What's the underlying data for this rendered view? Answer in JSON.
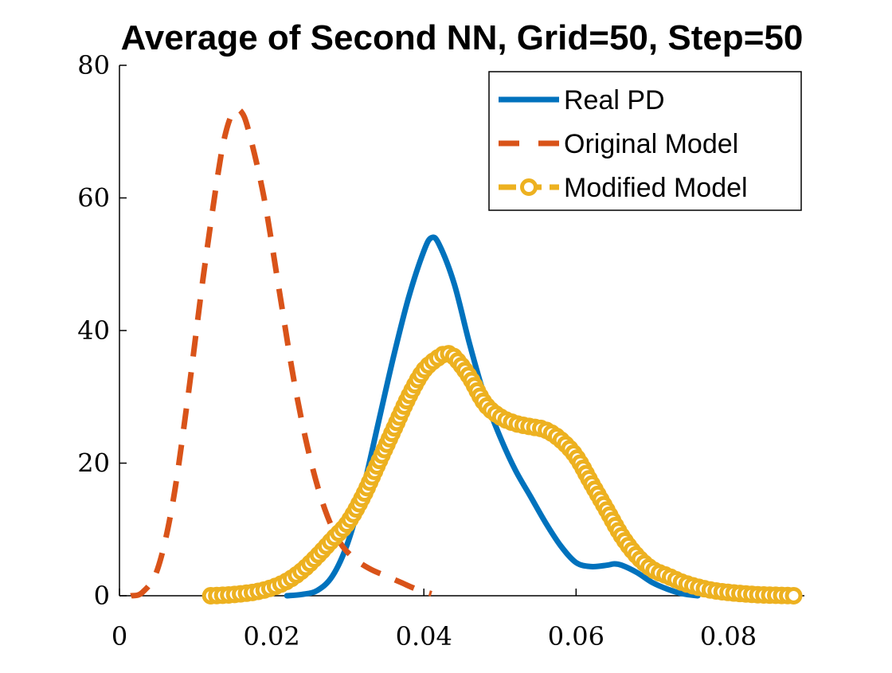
{
  "chart_data": {
    "type": "line",
    "title": "Average of Second NN, Grid=50, Step=50",
    "xlabel": "",
    "ylabel": "",
    "xlim": [
      0,
      0.09
    ],
    "ylim": [
      0,
      80
    ],
    "x_ticks": [
      "0",
      "0.02",
      "0.04",
      "0.06",
      "0.08"
    ],
    "y_ticks": [
      "0",
      "20",
      "40",
      "60",
      "80"
    ],
    "grid": false,
    "legend_position": "top-right",
    "series": [
      {
        "name": "Real PD",
        "style": "solid",
        "color": "#0072BD",
        "points": [
          [
            0.022,
            0
          ],
          [
            0.024,
            0.2
          ],
          [
            0.026,
            0.8
          ],
          [
            0.028,
            3
          ],
          [
            0.03,
            8
          ],
          [
            0.032,
            16
          ],
          [
            0.034,
            26
          ],
          [
            0.036,
            36
          ],
          [
            0.038,
            45
          ],
          [
            0.04,
            52
          ],
          [
            0.041,
            54
          ],
          [
            0.042,
            53
          ],
          [
            0.044,
            47
          ],
          [
            0.046,
            38
          ],
          [
            0.048,
            30
          ],
          [
            0.05,
            24
          ],
          [
            0.052,
            19
          ],
          [
            0.054,
            15
          ],
          [
            0.056,
            11
          ],
          [
            0.058,
            7.5
          ],
          [
            0.06,
            5
          ],
          [
            0.062,
            4.4
          ],
          [
            0.064,
            4.6
          ],
          [
            0.065,
            4.8
          ],
          [
            0.066,
            4.6
          ],
          [
            0.068,
            3.5
          ],
          [
            0.07,
            2
          ],
          [
            0.072,
            1
          ],
          [
            0.074,
            0.3
          ],
          [
            0.076,
            0
          ]
        ]
      },
      {
        "name": "Original Model",
        "style": "dashed",
        "color": "#D95319",
        "points": [
          [
            0.0015,
            0
          ],
          [
            0.003,
            0.5
          ],
          [
            0.005,
            4
          ],
          [
            0.007,
            14
          ],
          [
            0.009,
            30
          ],
          [
            0.011,
            48
          ],
          [
            0.013,
            64
          ],
          [
            0.014,
            70
          ],
          [
            0.015,
            73
          ],
          [
            0.016,
            73
          ],
          [
            0.017,
            70
          ],
          [
            0.019,
            60
          ],
          [
            0.021,
            46
          ],
          [
            0.023,
            32
          ],
          [
            0.025,
            21
          ],
          [
            0.027,
            13
          ],
          [
            0.029,
            8
          ],
          [
            0.031,
            5.5
          ],
          [
            0.033,
            4
          ],
          [
            0.035,
            3
          ],
          [
            0.037,
            2
          ],
          [
            0.039,
            1
          ],
          [
            0.041,
            0.3
          ]
        ]
      },
      {
        "name": "Modified Model",
        "style": "dash-circle",
        "color": "#EDB120",
        "points": [
          [
            0.012,
            0
          ],
          [
            0.014,
            0.1
          ],
          [
            0.016,
            0.3
          ],
          [
            0.018,
            0.6
          ],
          [
            0.02,
            1.2
          ],
          [
            0.022,
            2.2
          ],
          [
            0.024,
            3.8
          ],
          [
            0.026,
            6
          ],
          [
            0.028,
            8.5
          ],
          [
            0.03,
            11
          ],
          [
            0.032,
            15
          ],
          [
            0.034,
            20
          ],
          [
            0.036,
            25
          ],
          [
            0.038,
            30
          ],
          [
            0.04,
            34
          ],
          [
            0.042,
            36
          ],
          [
            0.043,
            36.5
          ],
          [
            0.044,
            36
          ],
          [
            0.046,
            33
          ],
          [
            0.048,
            29
          ],
          [
            0.05,
            27
          ],
          [
            0.052,
            26
          ],
          [
            0.054,
            25.5
          ],
          [
            0.056,
            25
          ],
          [
            0.058,
            23.5
          ],
          [
            0.06,
            21
          ],
          [
            0.062,
            17
          ],
          [
            0.064,
            13
          ],
          [
            0.066,
            9
          ],
          [
            0.068,
            6
          ],
          [
            0.07,
            4
          ],
          [
            0.072,
            3
          ],
          [
            0.074,
            2
          ],
          [
            0.076,
            1.3
          ],
          [
            0.078,
            0.8
          ],
          [
            0.08,
            0.5
          ],
          [
            0.082,
            0.3
          ],
          [
            0.084,
            0.15
          ],
          [
            0.086,
            0.08
          ],
          [
            0.088,
            0.02
          ],
          [
            0.089,
            0
          ]
        ]
      }
    ]
  }
}
